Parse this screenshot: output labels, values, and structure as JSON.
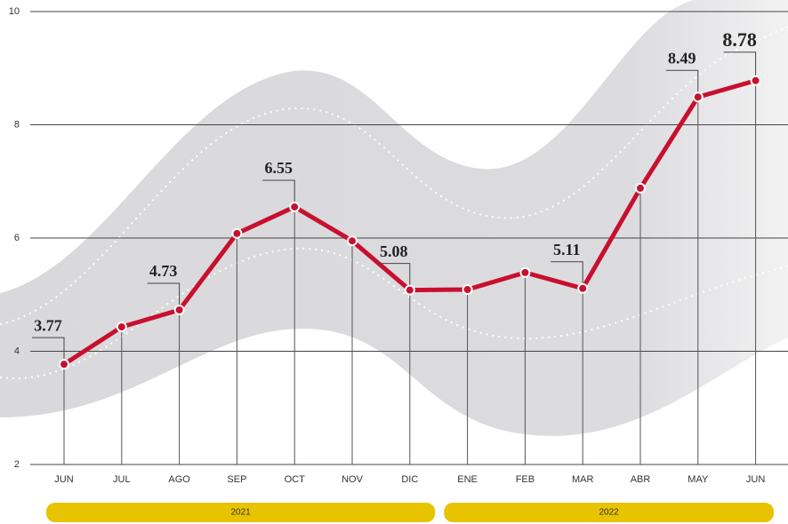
{
  "chart_data": {
    "type": "line",
    "categories": [
      "JUN",
      "JUL",
      "AGO",
      "SEP",
      "OCT",
      "NOV",
      "DIC",
      "ENE",
      "FEB",
      "MAR",
      "ABR",
      "MAY",
      "JUN"
    ],
    "values": [
      3.77,
      4.43,
      4.73,
      6.08,
      6.55,
      5.95,
      5.08,
      5.09,
      5.39,
      5.11,
      6.88,
      8.49,
      8.78
    ],
    "value_labels": [
      "3.77",
      null,
      "4.73",
      null,
      "6.55",
      null,
      "5.08",
      null,
      null,
      "5.11",
      null,
      "8.49",
      "8.78"
    ],
    "color": "#c8102e",
    "ylim": [
      2,
      10
    ],
    "yticks": [
      2,
      4,
      6,
      8,
      10
    ],
    "grid": true,
    "groups": [
      {
        "label": "2021",
        "count": 7
      },
      {
        "label": "2022",
        "count": 6
      }
    ],
    "group_color": "#e8c300"
  }
}
